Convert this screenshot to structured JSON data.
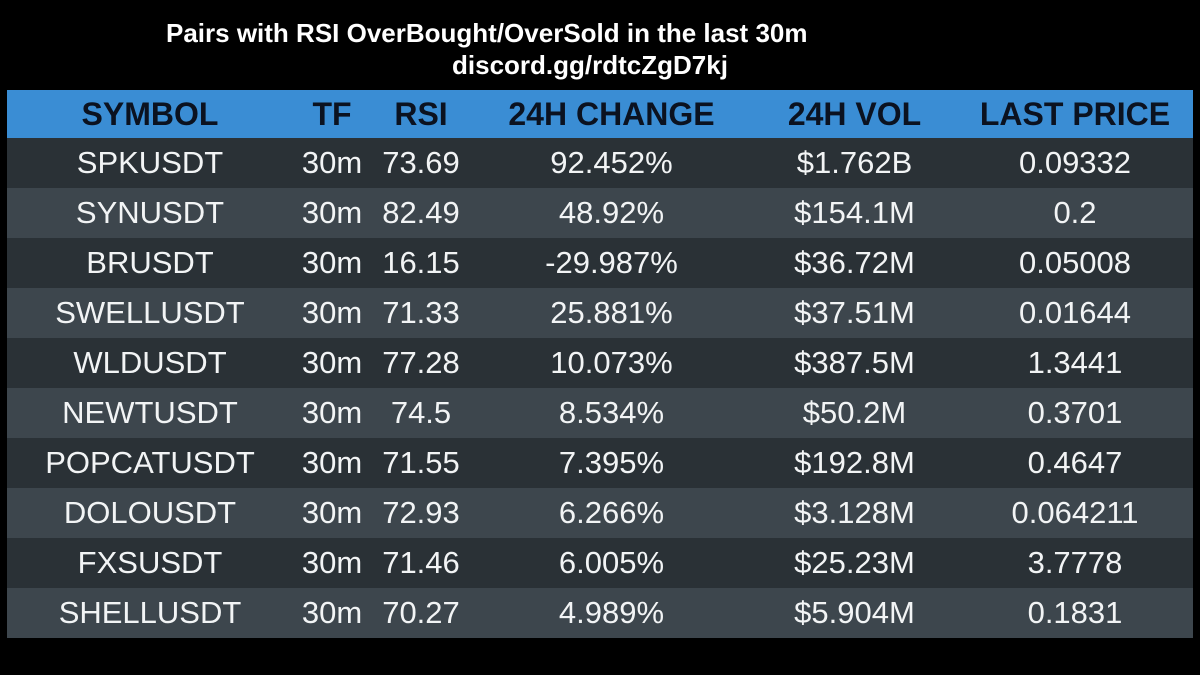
{
  "title": "Pairs with RSI OverBought/OverSold in the last 30m",
  "subtitle": "discord.gg/rdtcZgD7kj",
  "columns": [
    "SYMBOL",
    "TF",
    "RSI",
    "24H CHANGE",
    "24H VOL",
    "LAST PRICE"
  ],
  "rows": [
    [
      "SPKUSDT",
      "30m",
      "73.69",
      "92.452%",
      "$1.762B",
      "0.09332"
    ],
    [
      "SYNUSDT",
      "30m",
      "82.49",
      "48.92%",
      "$154.1M",
      "0.2"
    ],
    [
      "BRUSDT",
      "30m",
      "16.15",
      "-29.987%",
      "$36.72M",
      "0.05008"
    ],
    [
      "SWELLUSDT",
      "30m",
      "71.33",
      "25.881%",
      "$37.51M",
      "0.01644"
    ],
    [
      "WLDUSDT",
      "30m",
      "77.28",
      "10.073%",
      "$387.5M",
      "1.3441"
    ],
    [
      "NEWTUSDT",
      "30m",
      "74.5",
      "8.534%",
      "$50.2M",
      "0.3701"
    ],
    [
      "POPCATUSDT",
      "30m",
      "71.55",
      "7.395%",
      "$192.8M",
      "0.4647"
    ],
    [
      "DOLOUSDT",
      "30m",
      "72.93",
      "6.266%",
      "$3.128M",
      "0.064211"
    ],
    [
      "FXSUSDT",
      "30m",
      "71.46",
      "6.005%",
      "$25.23M",
      "3.7778"
    ],
    [
      "SHELLUSDT",
      "30m",
      "70.27",
      "4.989%",
      "$5.904M",
      "0.1831"
    ]
  ],
  "colors": {
    "background": "#000000",
    "header_bg": "#3a8dd4",
    "row_dark": "#2a3136",
    "row_light": "#3d464d"
  }
}
